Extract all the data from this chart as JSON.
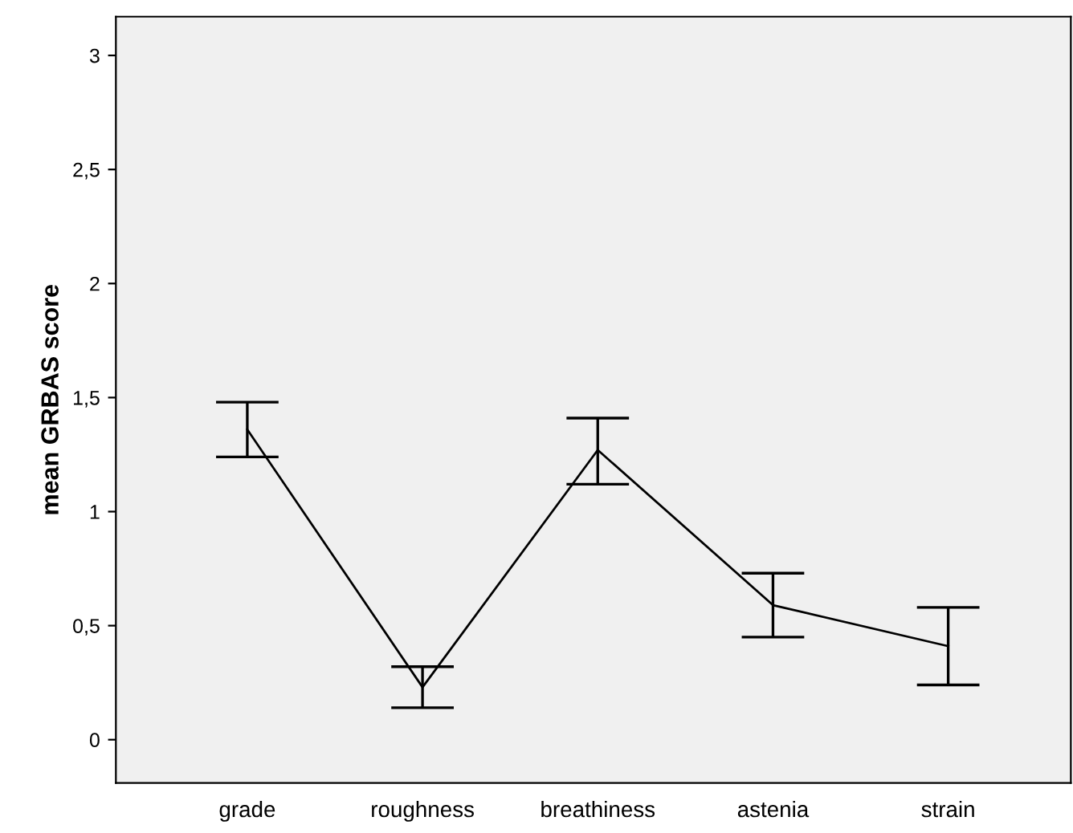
{
  "chart_data": {
    "type": "line",
    "ylabel": "mean GRBAS score",
    "categories": [
      "grade",
      "roughness",
      "breathiness",
      "astenia",
      "strain"
    ],
    "series": [
      {
        "color": "#000000",
        "values": [
          1.36,
          0.23,
          1.27,
          0.59,
          0.41
        ],
        "errors": [
          [
            1.24,
            1.48
          ],
          [
            0.14,
            0.32
          ],
          [
            1.12,
            1.41
          ],
          [
            0.45,
            0.73
          ],
          [
            0.24,
            0.58
          ]
        ]
      }
    ],
    "ylim": [
      -0.19,
      3.17
    ],
    "yticks": [
      0,
      {
        "value": 0.5,
        "label": "0,5"
      },
      1,
      {
        "value": 1.5,
        "label": "1,5"
      },
      2,
      {
        "value": 2.5,
        "label": "2,5"
      },
      3
    ],
    "grid": false,
    "marker": "none",
    "line_style": "solid"
  }
}
